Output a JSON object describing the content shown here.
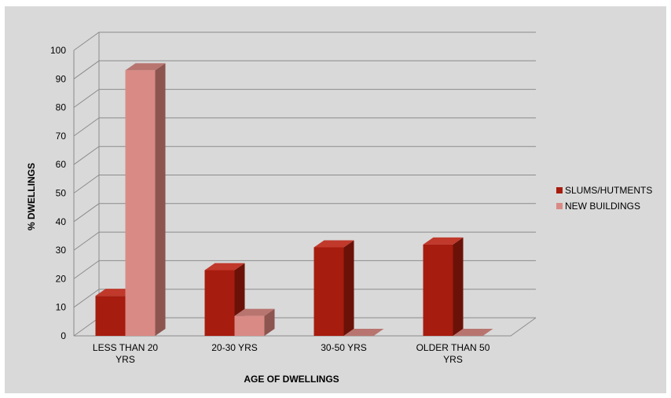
{
  "chart_data": {
    "type": "bar",
    "style": "3d-clustered-column",
    "title": "",
    "xlabel": "AGE OF DWELLINGS",
    "ylabel": "% DWELLINGS",
    "ylim": [
      0,
      100
    ],
    "yticks": [
      "0",
      "10",
      "20",
      "30",
      "40",
      "50",
      "60",
      "70",
      "80",
      "90",
      "100"
    ],
    "categories": [
      [
        "LESS THAN 20",
        "YRS"
      ],
      [
        "20-30 YRS"
      ],
      [
        "30-50 YRS"
      ],
      [
        "OLDER THAN 50",
        "YRS"
      ]
    ],
    "series": [
      {
        "name": "SLUMS/HUTMENTS",
        "values": [
          14,
          23,
          31,
          32
        ],
        "color": "#a61c0e",
        "side_color": "#6b1208",
        "top_color": "#c0392b"
      },
      {
        "name": "NEW BUILDINGS",
        "values": [
          93,
          7,
          0,
          0
        ],
        "color": "#d98a85",
        "side_color": "#8c5550",
        "top_color": "#b87570"
      }
    ],
    "grid": true,
    "legend": "right",
    "colors": {
      "background": "#d9d9d9",
      "gridline": "#8c8c8c"
    }
  }
}
